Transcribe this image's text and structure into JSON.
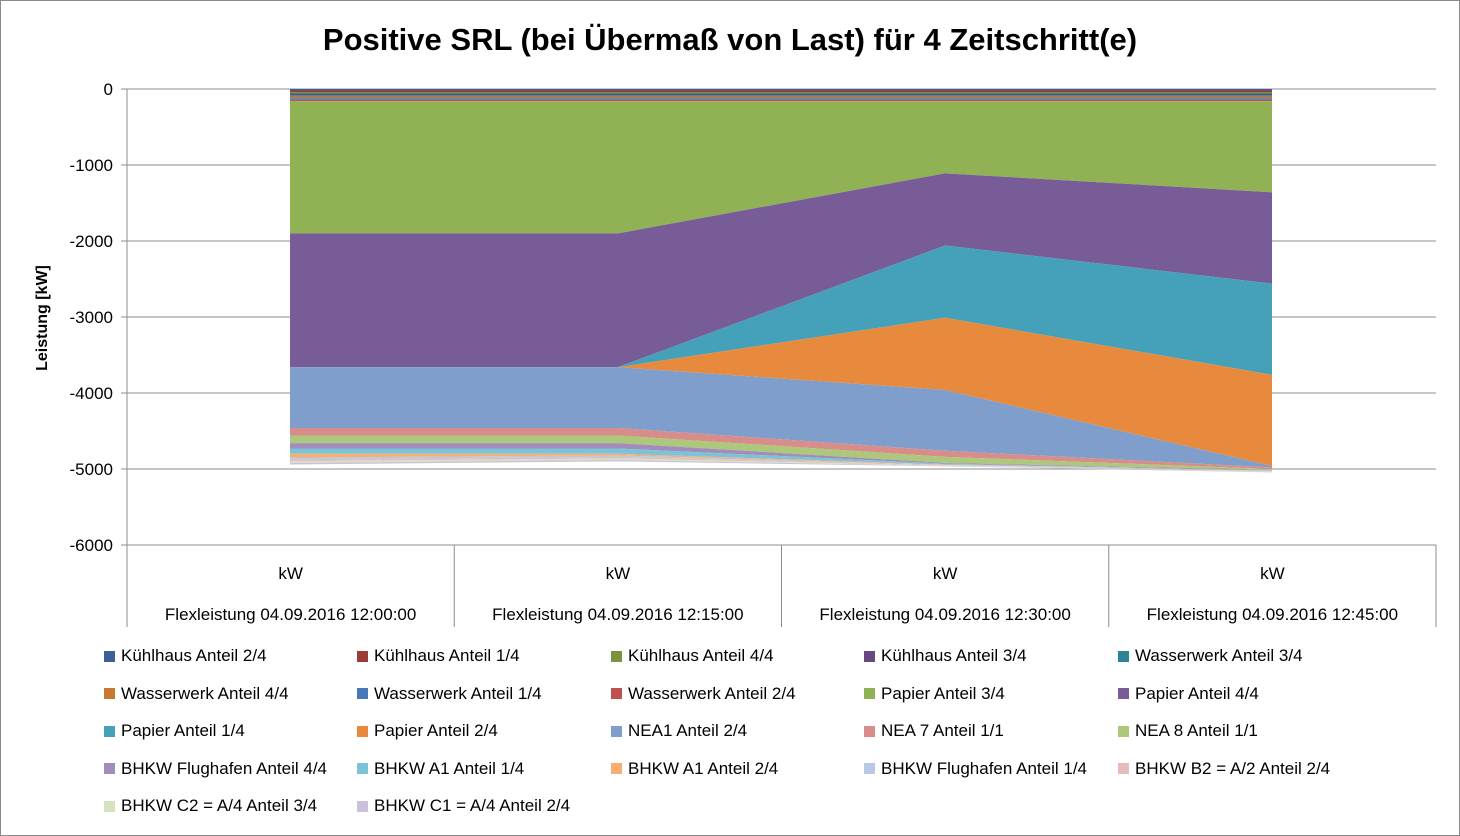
{
  "chart_data": {
    "type": "area",
    "stacked": true,
    "title": "Positive SRL (bei Übermaß von Last) für 4 Zeitschritt(e)",
    "ylabel": "Leistung [kW]",
    "xlabel": "",
    "ylim": [
      -6000,
      0
    ],
    "yticks": [
      0,
      -1000,
      -2000,
      -3000,
      -4000,
      -5000,
      -6000
    ],
    "grid": true,
    "legend_position": "bottom",
    "categories": [
      {
        "unit": "kW",
        "label": "Flexleistung 04.09.2016 12:00:00"
      },
      {
        "unit": "kW",
        "label": "Flexleistung 04.09.2016 12:15:00"
      },
      {
        "unit": "kW",
        "label": "Flexleistung 04.09.2016 12:30:00"
      },
      {
        "unit": "kW",
        "label": "Flexleistung 04.09.2016 12:45:00"
      }
    ],
    "series": [
      {
        "name": "Kühlhaus Anteil 2/4",
        "color": "#3c5f9a",
        "values": [
          -20,
          -20,
          -20,
          -20
        ]
      },
      {
        "name": "Kühlhaus Anteil 1/4",
        "color": "#9b3b38",
        "values": [
          -20,
          -20,
          -20,
          -20
        ]
      },
      {
        "name": "Kühlhaus Anteil 4/4",
        "color": "#7a933c",
        "values": [
          -20,
          -20,
          -20,
          -20
        ]
      },
      {
        "name": "Kühlhaus Anteil 3/4",
        "color": "#63497f",
        "values": [
          -20,
          -20,
          -20,
          -20
        ]
      },
      {
        "name": "Wasserwerk Anteil 3/4",
        "color": "#2e8397",
        "values": [
          -20,
          -20,
          -20,
          -20
        ]
      },
      {
        "name": "Wasserwerk Anteil 4/4",
        "color": "#c8772f",
        "values": [
          -20,
          -20,
          -20,
          -20
        ]
      },
      {
        "name": "Wasserwerk Anteil 1/4",
        "color": "#4a77b8",
        "values": [
          -20,
          -20,
          -20,
          -20
        ]
      },
      {
        "name": "Wasserwerk Anteil 2/4",
        "color": "#c0504d",
        "values": [
          -20,
          -20,
          -20,
          -20
        ]
      },
      {
        "name": "Papier Anteil 3/4",
        "color": "#91b155",
        "values": [
          -1740,
          -1740,
          -950,
          -1200
        ]
      },
      {
        "name": "Papier Anteil 4/4",
        "color": "#775c98",
        "values": [
          -1760,
          -1760,
          -950,
          -1200
        ]
      },
      {
        "name": "Papier Anteil 1/4",
        "color": "#45a1b9",
        "values": [
          0,
          0,
          -950,
          -1200
        ]
      },
      {
        "name": "Papier Anteil 2/4",
        "color": "#e88a3d",
        "values": [
          0,
          0,
          -950,
          -1200
        ]
      },
      {
        "name": "NEA1 Anteil 2/4",
        "color": "#7f9ecb",
        "values": [
          -800,
          -800,
          -800,
          -20
        ]
      },
      {
        "name": "NEA 7 Anteil 1/1",
        "color": "#d98d8b",
        "values": [
          -100,
          -100,
          -80,
          -20
        ]
      },
      {
        "name": "NEA 8 Anteil 1/1",
        "color": "#acc87b",
        "values": [
          -100,
          -100,
          -80,
          -10
        ]
      },
      {
        "name": "BHKW Flughafen Anteil 4/4",
        "color": "#a28cbb",
        "values": [
          -70,
          -70,
          -10,
          -5
        ]
      },
      {
        "name": "BHKW A1 Anteil 1/4",
        "color": "#7bc3d6",
        "values": [
          -70,
          -70,
          -10,
          -5
        ]
      },
      {
        "name": "BHKW A1 Anteil 2/4",
        "color": "#f9ae6f",
        "values": [
          -50,
          -20,
          -5,
          -5
        ]
      },
      {
        "name": "BHKW Flughafen Anteil 1/4",
        "color": "#b7c9e4",
        "values": [
          -30,
          -20,
          -5,
          -5
        ]
      },
      {
        "name": "BHKW B2 = A/2 Anteil 2/4",
        "color": "#e5bcbc",
        "values": [
          -20,
          -20,
          -5,
          -5
        ]
      },
      {
        "name": "BHKW C2 = A/4 Anteil 3/4",
        "color": "#d5e3bf",
        "values": [
          -20,
          -20,
          -5,
          -5
        ]
      },
      {
        "name": "BHKW C1 = A/4 Anteil 2/4",
        "color": "#cbc1da",
        "values": [
          -20,
          -20,
          -5,
          -5
        ]
      }
    ]
  }
}
